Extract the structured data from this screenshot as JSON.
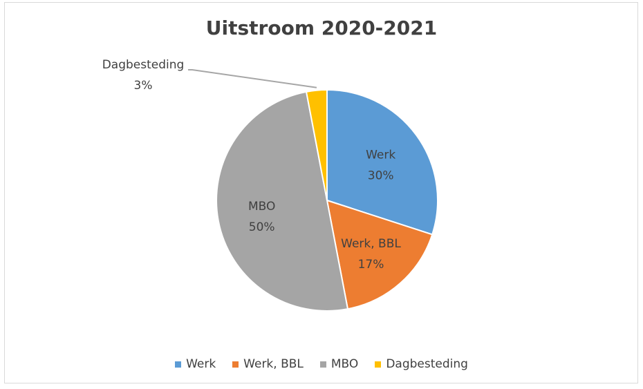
{
  "chart_data": {
    "type": "pie",
    "title": "Uitstroom 2020-2021",
    "slices": [
      {
        "label": "Werk",
        "value": 30,
        "value_label": "30%",
        "color": "#5b9bd5"
      },
      {
        "label": "Werk, BBL",
        "value": 17,
        "value_label": "17%",
        "color": "#ed7d31"
      },
      {
        "label": "MBO",
        "value": 50,
        "value_label": "50%",
        "color": "#a5a5a5"
      },
      {
        "label": "Dagbesteding",
        "value": 3,
        "value_label": "3%",
        "color": "#ffc000"
      }
    ],
    "legend_position": "bottom"
  }
}
